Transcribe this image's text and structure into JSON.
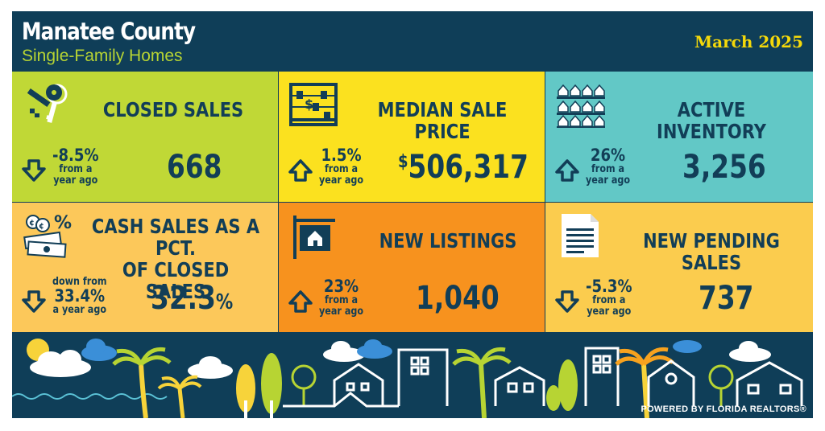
{
  "header": {
    "title": "Manatee County",
    "subtitle": "Single-Family Homes",
    "date": "March 2025"
  },
  "tiles": [
    {
      "key": "closed_sales",
      "title": "CLOSED SALES",
      "change_main": "-8.5%",
      "change_sub1": "from a",
      "change_sub2": "year ago",
      "direction": "down",
      "value": "668",
      "color": "#c0d836",
      "icon": "keys-icon"
    },
    {
      "key": "median_sale_price",
      "title": "MEDIAN SALE PRICE",
      "change_main": "1.5%",
      "change_sub1": "from a",
      "change_sub2": "year ago",
      "direction": "up",
      "value_currency": "$",
      "value": "506,317",
      "color": "#fbe11f",
      "icon": "abacus-icon"
    },
    {
      "key": "active_inventory",
      "title": "ACTIVE INVENTORY",
      "change_main": "26%",
      "change_sub1": "from a",
      "change_sub2": "year ago",
      "direction": "up",
      "value": "3,256",
      "color": "#62c8c6",
      "icon": "houses-grid-icon"
    },
    {
      "key": "cash_sales",
      "title_line1": "CASH SALES AS A PCT.",
      "title_line2": "OF CLOSED SALES",
      "change_top": "down from",
      "change_main": "33.4%",
      "change_sub2": "a year ago",
      "direction": "down",
      "value": "32.3",
      "value_suffix": "%",
      "color": "#fcc85a",
      "icon": "cash-percent-icon"
    },
    {
      "key": "new_listings",
      "title": "NEW LISTINGS",
      "change_main": "23%",
      "change_sub1": "from a",
      "change_sub2": "year ago",
      "direction": "up",
      "value": "1,040",
      "color": "#f7921e",
      "icon": "listing-sign-icon"
    },
    {
      "key": "new_pending_sales",
      "title": "NEW PENDING SALES",
      "change_main": "-5.3%",
      "change_sub1": "from a",
      "change_sub2": "year ago",
      "direction": "down",
      "value": "737",
      "color": "#fbcc4e",
      "icon": "document-icon"
    }
  ],
  "footer": {
    "text": "POWERED BY FLORIDA REALTORS®"
  },
  "colors": {
    "navy": "#0f3e58",
    "text": "#123e57",
    "accent_green": "#b7d433",
    "accent_yellow": "#f5d90a"
  }
}
